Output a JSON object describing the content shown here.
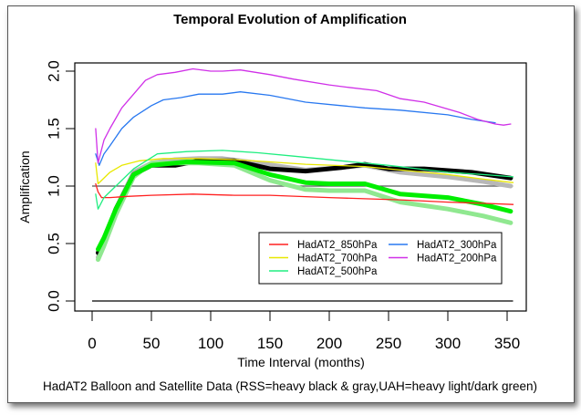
{
  "chart_data": {
    "type": "line",
    "title": "Temporal Evolution of Amplification",
    "xlabel": "Time Interval (months)",
    "ylabel": "Amplification",
    "subtitle": "HadAT2 Balloon and Satellite Data (RSS=heavy black & gray,UAH=heavy light/dark green)",
    "xlim": [
      0,
      360
    ],
    "ylim": [
      0,
      2.05
    ],
    "x_ticks": [
      0,
      50,
      100,
      150,
      200,
      250,
      300,
      350
    ],
    "x_tick_labels": [
      "0",
      "50",
      "100",
      "150",
      "200",
      "250",
      "300",
      "350"
    ],
    "y_ticks": [
      0,
      0.5,
      1,
      1.5,
      2
    ],
    "y_tick_labels": [
      "0.0",
      "0.5",
      "1.0",
      "1.5",
      "2.0"
    ],
    "grid": false,
    "legend_position": "bottom-right",
    "reference_lines": [
      {
        "name": "unity-line",
        "y": 1.0,
        "x_range": [
          0,
          355
        ],
        "color": "#555555"
      },
      {
        "name": "zero-line",
        "y": 0.0,
        "x_range": [
          0,
          355
        ],
        "color": "#000000"
      }
    ],
    "series": [
      {
        "name": "RSS_gray",
        "label": "",
        "color": "#b8b8b8",
        "weight": "heavy",
        "in_legend": false,
        "x": [
          5,
          10,
          20,
          35,
          50,
          70,
          90,
          110,
          140,
          180,
          210,
          230,
          260,
          300,
          330,
          353
        ],
        "y": [
          0.38,
          0.5,
          0.8,
          1.12,
          1.2,
          1.23,
          1.24,
          1.24,
          1.2,
          1.14,
          1.16,
          1.18,
          1.12,
          1.08,
          1.04,
          1.0
        ]
      },
      {
        "name": "RSS_black",
        "label": "",
        "color": "#000000",
        "weight": "heavy",
        "in_legend": false,
        "x": [
          5,
          10,
          20,
          35,
          50,
          70,
          90,
          120,
          150,
          180,
          210,
          230,
          250,
          280,
          320,
          353
        ],
        "y": [
          0.42,
          0.52,
          0.8,
          1.1,
          1.18,
          1.18,
          1.22,
          1.22,
          1.15,
          1.13,
          1.16,
          1.19,
          1.15,
          1.15,
          1.12,
          1.07
        ]
      },
      {
        "name": "UAH_light_green",
        "label": "",
        "color": "#90e890",
        "weight": "heavy",
        "in_legend": false,
        "x": [
          5,
          10,
          20,
          35,
          50,
          70,
          90,
          120,
          150,
          180,
          200,
          230,
          260,
          300,
          330,
          353
        ],
        "y": [
          0.36,
          0.48,
          0.75,
          1.08,
          1.2,
          1.2,
          1.2,
          1.18,
          1.05,
          0.97,
          0.96,
          0.96,
          0.86,
          0.8,
          0.74,
          0.68
        ]
      },
      {
        "name": "UAH_dark_green",
        "label": "",
        "color": "#00ee00",
        "weight": "heavy",
        "in_legend": false,
        "x": [
          5,
          10,
          20,
          35,
          50,
          80,
          120,
          150,
          180,
          200,
          230,
          260,
          300,
          330,
          353
        ],
        "y": [
          0.45,
          0.55,
          0.8,
          1.1,
          1.18,
          1.21,
          1.2,
          1.1,
          1.03,
          1.02,
          1.02,
          0.93,
          0.9,
          0.84,
          0.78
        ]
      },
      {
        "name": "HadAT2_850hPa",
        "label": "HadAT2_850hPa",
        "color": "#ff2020",
        "weight": "thin",
        "in_legend": true,
        "x": [
          3,
          5,
          8,
          15,
          30,
          50,
          85,
          120,
          150,
          200,
          230,
          260,
          300,
          330,
          355
        ],
        "y": [
          1.02,
          0.95,
          0.9,
          0.9,
          0.91,
          0.92,
          0.93,
          0.92,
          0.92,
          0.9,
          0.89,
          0.88,
          0.86,
          0.85,
          0.84
        ]
      },
      {
        "name": "HadAT2_700hPa",
        "label": "HadAT2_700hPa",
        "color": "#e8e800",
        "weight": "thin",
        "in_legend": true,
        "x": [
          3,
          5,
          15,
          25,
          40,
          60,
          90,
          120,
          150,
          180,
          230,
          260,
          300,
          330,
          355
        ],
        "y": [
          1.2,
          1.02,
          1.12,
          1.18,
          1.22,
          1.24,
          1.24,
          1.23,
          1.21,
          1.19,
          1.17,
          1.14,
          1.1,
          1.06,
          1.03
        ]
      },
      {
        "name": "HadAT2_500hPa",
        "label": "HadAT2_500hPa",
        "color": "#20ee80",
        "weight": "thin",
        "in_legend": true,
        "x": [
          3,
          5,
          10,
          20,
          35,
          55,
          80,
          110,
          140,
          170,
          210,
          250,
          300,
          330,
          355
        ],
        "y": [
          0.93,
          0.8,
          0.9,
          1.0,
          1.15,
          1.28,
          1.3,
          1.31,
          1.29,
          1.26,
          1.22,
          1.18,
          1.12,
          1.1,
          1.08
        ]
      },
      {
        "name": "HadAT2_300hPa",
        "label": "HadAT2_300hPa",
        "color": "#2878f0",
        "weight": "thin",
        "in_legend": true,
        "x": [
          3,
          6,
          10,
          15,
          25,
          35,
          50,
          60,
          75,
          90,
          110,
          125,
          150,
          180,
          210,
          230,
          260,
          300,
          320,
          340
        ],
        "y": [
          1.28,
          1.18,
          1.28,
          1.35,
          1.5,
          1.6,
          1.7,
          1.75,
          1.77,
          1.8,
          1.8,
          1.82,
          1.79,
          1.73,
          1.7,
          1.68,
          1.66,
          1.62,
          1.58,
          1.55
        ]
      },
      {
        "name": "HadAT2_200hPa",
        "label": "HadAT2_200hPa",
        "color": "#d030e8",
        "weight": "thin",
        "in_legend": true,
        "x": [
          3,
          5,
          10,
          15,
          25,
          35,
          45,
          55,
          70,
          85,
          100,
          110,
          125,
          150,
          170,
          200,
          215,
          240,
          260,
          280,
          310,
          325,
          340,
          347,
          353
        ],
        "y": [
          1.5,
          1.2,
          1.4,
          1.5,
          1.68,
          1.8,
          1.92,
          1.97,
          1.99,
          2.02,
          2.0,
          2.0,
          2.01,
          1.97,
          1.93,
          1.88,
          1.86,
          1.83,
          1.76,
          1.73,
          1.64,
          1.58,
          1.54,
          1.53,
          1.54
        ]
      }
    ]
  }
}
